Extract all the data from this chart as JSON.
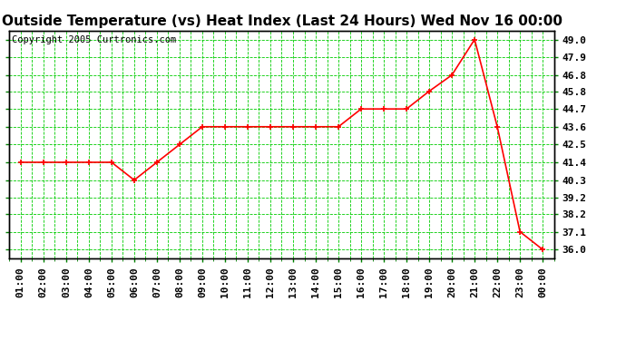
{
  "title": "Outside Temperature (vs) Heat Index (Last 24 Hours) Wed Nov 16 00:00",
  "copyright_text": "Copyright 2005 Curtronics.com",
  "x_labels": [
    "01:00",
    "02:00",
    "03:00",
    "04:00",
    "05:00",
    "06:00",
    "07:00",
    "08:00",
    "09:00",
    "10:00",
    "11:00",
    "12:00",
    "13:00",
    "14:00",
    "15:00",
    "16:00",
    "17:00",
    "18:00",
    "19:00",
    "20:00",
    "21:00",
    "22:00",
    "23:00",
    "00:00"
  ],
  "y_values": [
    41.4,
    41.4,
    41.4,
    41.4,
    41.4,
    40.3,
    41.4,
    42.5,
    43.6,
    43.6,
    43.6,
    43.6,
    43.6,
    43.6,
    43.6,
    44.7,
    44.7,
    44.7,
    45.8,
    46.8,
    49.0,
    43.6,
    37.1,
    36.0
  ],
  "line_color": "#ff0000",
  "marker_color": "#ff0000",
  "bg_color": "#ffffff",
  "plot_bg_color": "#ffffff",
  "grid_color": "#00cc00",
  "title_fontsize": 11,
  "copyright_fontsize": 7.5,
  "tick_label_fontsize": 8,
  "y_tick_labels": [
    36.0,
    37.1,
    38.2,
    39.2,
    40.3,
    41.4,
    42.5,
    43.6,
    44.7,
    45.8,
    46.8,
    47.9,
    49.0
  ],
  "ylim": [
    35.45,
    49.55
  ],
  "y_right_label_color": "#000000",
  "border_color": "#000000"
}
